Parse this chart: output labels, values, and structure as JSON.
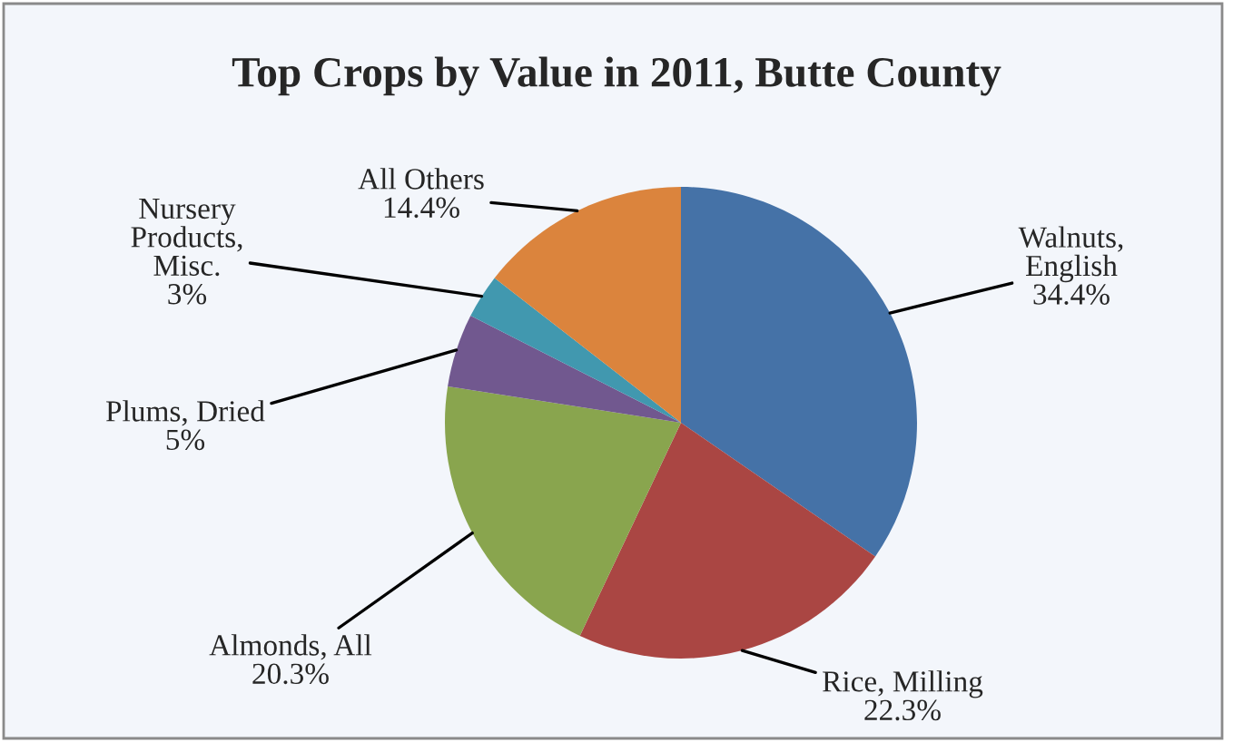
{
  "chart_data": {
    "type": "pie",
    "title": "Top Crops by Value in 2011, Butte County",
    "categories": [
      "Walnuts,\nEnglish",
      "Rice, Milling",
      "Almonds, All",
      "Plums, Dried",
      "Nursery\nProducts,\nMisc.",
      "All Others"
    ],
    "values": [
      34.4,
      22.3,
      20.3,
      5,
      3,
      14.4
    ],
    "value_labels": [
      "34.4%",
      "22.3%",
      "20.3%",
      "5%",
      "3%",
      "14.4%"
    ],
    "colors": [
      "#4572a7",
      "#aa4643",
      "#89a54e",
      "#71588f",
      "#4198af",
      "#db843d"
    ]
  }
}
